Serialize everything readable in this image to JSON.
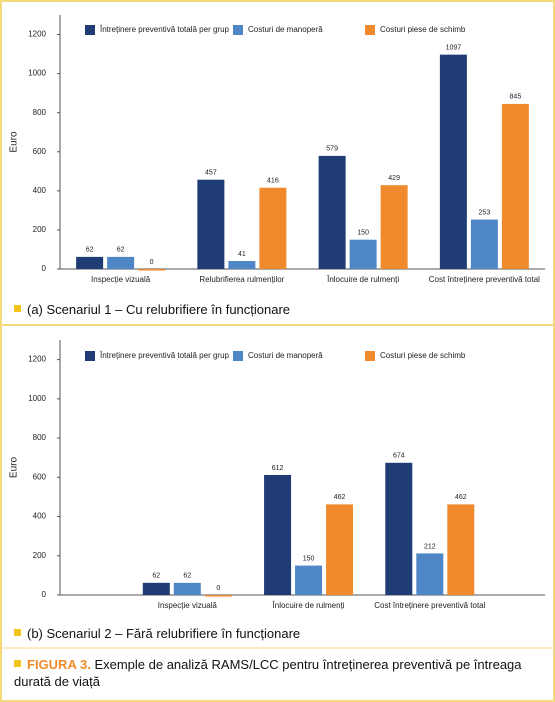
{
  "chart_data": [
    {
      "type": "bar",
      "caption": "(a) Scenariul 1 – Cu relubrifiere în funcționare",
      "y_label": "Euro",
      "categories": [
        "Inspecție vizuală",
        "Relubrifierea rulmenților",
        "Înlocuire de rulmenți",
        "Cost întreținere preventivă total"
      ],
      "series": [
        {
          "name": "Întreținere preventivă totală per grup",
          "color": "#1f3c74",
          "values": [
            62,
            457,
            579,
            1097
          ]
        },
        {
          "name": "Costuri de manoperă",
          "color": "#4f86c6",
          "values": [
            62,
            41,
            150,
            253
          ]
        },
        {
          "name": "Costuri piese de schimb",
          "color": "#f08a2c",
          "values": [
            0,
            416,
            429,
            845
          ]
        }
      ],
      "ylim": [
        0,
        1300
      ],
      "yticks": [
        0,
        200,
        400,
        600,
        800,
        1000,
        1200
      ]
    },
    {
      "type": "bar",
      "caption": "(b) Scenariul 2 – Fără relubrifiere în funcționare",
      "y_label": "Euro",
      "categories": [
        "Inspecție vizuală",
        "Înlocuire de rulmenți",
        "Cost întreținere preventivă total"
      ],
      "series": [
        {
          "name": "Întreținere preventivă totală per grup",
          "color": "#1f3c74",
          "values": [
            62,
            612,
            674
          ]
        },
        {
          "name": "Costuri de manoperă",
          "color": "#4f86c6",
          "values": [
            62,
            150,
            212
          ]
        },
        {
          "name": "Costuri piese de schimb",
          "color": "#f08a2c",
          "values": [
            0,
            462,
            462
          ]
        }
      ],
      "ylim": [
        0,
        1300
      ],
      "yticks": [
        0,
        200,
        400,
        600,
        800,
        1000,
        1200
      ]
    }
  ],
  "figure": {
    "label": "FIGURA 3.",
    "text": "Exemple de analiză RAMS/LCC pentru întreținerea preventivă pe întreaga durată de viață"
  }
}
